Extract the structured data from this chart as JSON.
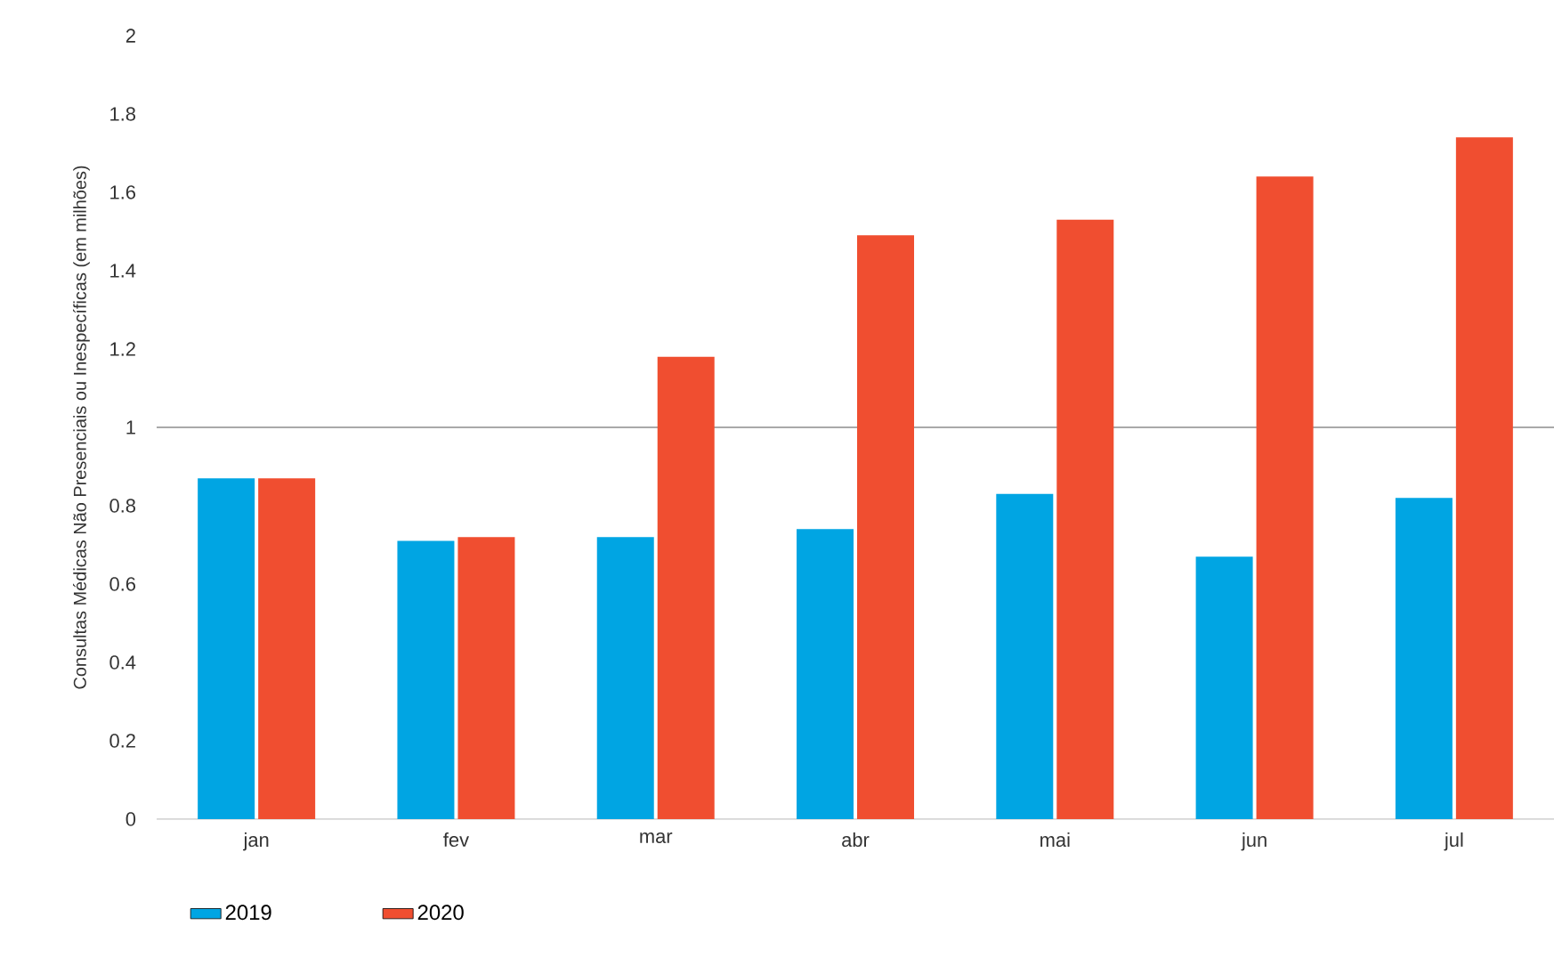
{
  "chart_data": {
    "type": "bar",
    "ylabel": "Consultas Médicas Não Presenciais ou Inespecíficas (em milhões)",
    "categories": [
      "jan",
      "fev",
      "mar",
      "abr",
      "mai",
      "jun",
      "jul"
    ],
    "series": [
      {
        "name": "2019",
        "color": "#00a5e3",
        "values": [
          0.87,
          0.71,
          0.72,
          0.74,
          0.83,
          0.67,
          0.82
        ]
      },
      {
        "name": "2020",
        "color": "#f04e30",
        "values": [
          0.87,
          0.72,
          1.18,
          1.49,
          1.53,
          1.64,
          1.74
        ]
      }
    ],
    "ylim": [
      0,
      2
    ],
    "yticks": [
      0,
      0.2,
      0.4,
      0.6,
      0.8,
      1,
      1.2,
      1.4,
      1.6,
      1.8,
      2
    ],
    "ref_lines": [
      {
        "axis": "y",
        "value": 1,
        "color": "#8c8c8c"
      }
    ],
    "grid": false,
    "legend": "bottom left"
  }
}
